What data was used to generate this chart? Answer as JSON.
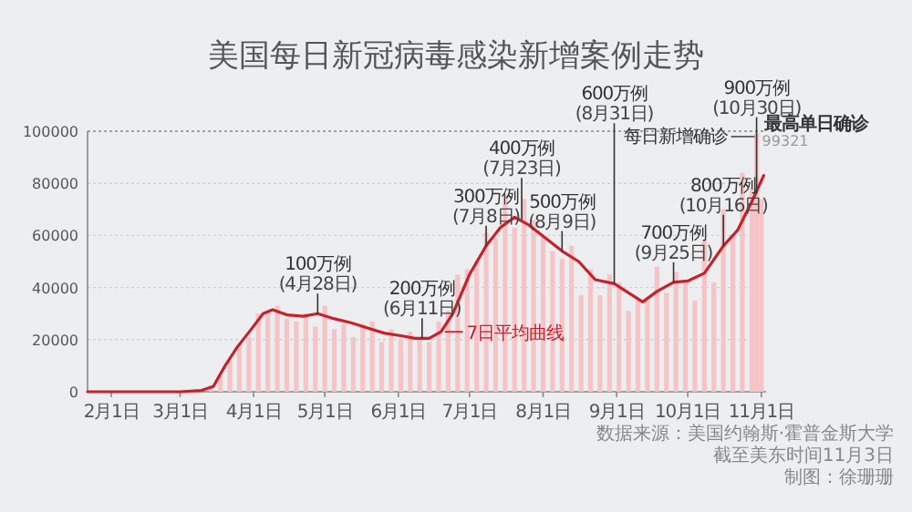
{
  "chart_data": {
    "type": "bar",
    "title": "美国每日新冠病毒感染新增案例走势",
    "xlim": [
      "--01-22",
      "--11-03"
    ],
    "xticks": [
      {
        "value": "--02-01",
        "label": "2月1日"
      },
      {
        "value": "--03-01",
        "label": "3月1日"
      },
      {
        "value": "--04-01",
        "label": "4月1日"
      },
      {
        "value": "--05-01",
        "label": "5月1日"
      },
      {
        "value": "--06-01",
        "label": "6月1日"
      },
      {
        "value": "--07-01",
        "label": "7月1日"
      },
      {
        "value": "--08-01",
        "label": "8月1日"
      },
      {
        "value": "--09-01",
        "label": "9月1日"
      },
      {
        "value": "--10-01",
        "label": "10月1日"
      },
      {
        "value": "--11-01",
        "label": "11月1日"
      }
    ],
    "ylim": [
      0,
      100000
    ],
    "yticks": [
      0,
      20000,
      40000,
      60000,
      80000,
      100000
    ],
    "grid": "y",
    "series": [
      {
        "name": "每日新增确诊",
        "color": "#f6c4c6",
        "x": [
          "--03-02",
          "--03-06",
          "--03-10",
          "--03-14",
          "--03-18",
          "--03-22",
          "--03-26",
          "--03-30",
          "--04-03",
          "--04-07",
          "--04-11",
          "--04-15",
          "--04-19",
          "--04-23",
          "--04-27",
          "--05-01",
          "--05-05",
          "--05-09",
          "--05-13",
          "--05-17",
          "--05-21",
          "--05-25",
          "--05-29",
          "--06-02",
          "--06-06",
          "--06-10",
          "--06-14",
          "--06-18",
          "--06-22",
          "--06-26",
          "--06-30",
          "--07-04",
          "--07-08",
          "--07-12",
          "--07-16",
          "--07-20",
          "--07-24",
          "--07-28",
          "--08-01",
          "--08-05",
          "--08-09",
          "--08-13",
          "--08-17",
          "--08-21",
          "--08-25",
          "--08-29",
          "--09-02",
          "--09-06",
          "--09-10",
          "--09-14",
          "--09-18",
          "--09-22",
          "--09-26",
          "--09-30",
          "--10-04",
          "--10-08",
          "--10-12",
          "--10-16",
          "--10-20",
          "--10-24",
          "--10-28",
          "--10-30",
          "--11-01"
        ],
        "values": [
          100,
          300,
          null,
          2500,
          6000,
          12000,
          18500,
          21000,
          30000,
          31000,
          33000,
          28000,
          27000,
          30000,
          25000,
          33000,
          24000,
          26000,
          21000,
          26000,
          27000,
          19000,
          24000,
          20000,
          23000,
          21000,
          19000,
          27000,
          31000,
          45000,
          47000,
          50000,
          61000,
          59000,
          75000,
          63000,
          74000,
          66000,
          60000,
          54000,
          51000,
          56000,
          37000,
          47000,
          37000,
          45000,
          42000,
          31000,
          36000,
          35000,
          48000,
          38000,
          46000,
          43000,
          35000,
          58000,
          42000,
          70000,
          60000,
          84000,
          78000,
          99321,
          74000
        ],
        "value_labels": [
          null,
          null,
          null,
          null,
          null,
          null,
          null,
          null,
          null,
          null,
          null,
          null,
          null,
          null,
          null,
          null,
          null,
          null,
          null,
          null,
          null,
          null,
          null,
          null,
          null,
          null,
          null,
          null,
          null,
          null,
          null,
          null,
          null,
          null,
          null,
          null,
          null,
          null,
          null,
          null,
          null,
          null,
          null,
          null,
          null,
          null,
          null,
          null,
          null,
          null,
          null,
          null,
          null,
          null,
          null,
          null,
          null,
          null,
          null,
          null,
          null,
          "99321",
          null
        ]
      },
      {
        "name": "7日平均曲线",
        "type": "line",
        "color": "#c8202a",
        "x": [
          "--01-22",
          "--03-01",
          "--03-10",
          "--03-15",
          "--03-20",
          "--03-25",
          "--03-31",
          "--04-05",
          "--04-09",
          "--04-15",
          "--04-22",
          "--04-28",
          "--05-05",
          "--05-12",
          "--05-19",
          "--05-26",
          "--06-02",
          "--06-08",
          "--06-14",
          "--06-19",
          "--06-24",
          "--07-01",
          "--07-08",
          "--07-14",
          "--07-20",
          "--07-26",
          "--08-02",
          "--08-09",
          "--08-16",
          "--08-23",
          "--08-31",
          "--09-06",
          "--09-12",
          "--09-18",
          "--09-25",
          "--10-01",
          "--10-08",
          "--10-16",
          "--10-22",
          "--10-28",
          "--11-02"
        ],
        "values": [
          0,
          0,
          500,
          2000,
          10000,
          17000,
          24000,
          30000,
          31500,
          29500,
          29000,
          30000,
          28000,
          26500,
          24500,
          22500,
          21500,
          20500,
          20500,
          23000,
          30000,
          45000,
          56000,
          63000,
          67000,
          64000,
          59000,
          54000,
          50000,
          43000,
          41500,
          38000,
          34500,
          38500,
          42000,
          42500,
          45500,
          56000,
          62000,
          73000,
          83000
        ]
      }
    ],
    "annotations": [
      {
        "text": "100万例 (4月28日)",
        "x": "--04-28",
        "y": 30000
      },
      {
        "text": "200万例 (6月11日)",
        "x": "--06-11",
        "y": 20500
      },
      {
        "text": "300万例 (7月8日)",
        "x": "--07-08",
        "y": 56000
      },
      {
        "text": "400万例 (7月23日)",
        "x": "--07-23",
        "y": 66000
      },
      {
        "text": "500万例 (8月9日)",
        "x": "--08-09",
        "y": 54000
      },
      {
        "text": "600万例 (8月31日)",
        "x": "--08-31",
        "y": 41500
      },
      {
        "text": "700万例 (9月25日)",
        "x": "--09-25",
        "y": 42000
      },
      {
        "text": "800万例 (10月16日)",
        "x": "--10-16",
        "y": 56000
      },
      {
        "text": "900万例 (10月30日)",
        "x": "--10-30",
        "y": 76000
      },
      {
        "text": "最高单日确诊",
        "x": "--10-30",
        "y": 99321
      },
      "数据来源：美国约翰斯·霍普金斯大学",
      "截至美东时间11月3日",
      "制图：徐珊珊"
    ]
  }
}
